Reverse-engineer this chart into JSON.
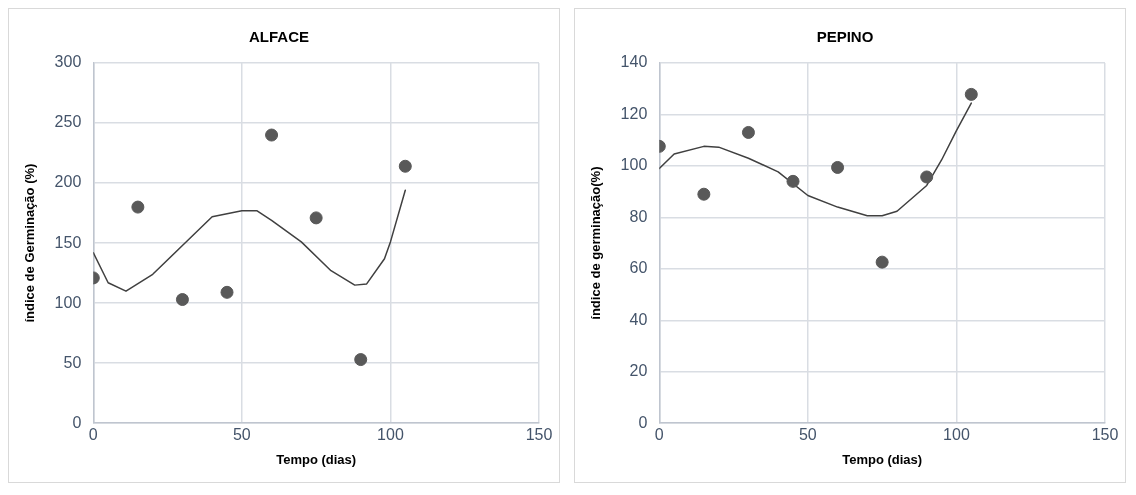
{
  "chart_data": [
    {
      "type": "scatter",
      "title": "ALFACE",
      "xlabel": "Tempo (dias)",
      "ylabel": "índice de Germinação (%)",
      "xlim": [
        0,
        150
      ],
      "xticks": [
        0,
        50,
        100,
        150
      ],
      "ylim": [
        0,
        300
      ],
      "yticks": [
        0,
        50,
        100,
        150,
        200,
        250,
        300
      ],
      "grid": true,
      "series": [
        {
          "type": "scatter",
          "marker": "circle",
          "color": "#595959",
          "x": [
            0,
            15,
            30,
            45,
            60,
            75,
            90,
            105
          ],
          "values": [
            121,
            180,
            103,
            109,
            240,
            171,
            53,
            214
          ]
        },
        {
          "type": "line",
          "color": "#404040",
          "x": [
            0,
            5,
            11,
            20,
            30,
            40,
            50,
            55,
            60,
            70,
            80,
            88,
            92,
            98,
            100,
            105
          ],
          "values": [
            142,
            117,
            110,
            124,
            148,
            172,
            177,
            177,
            169,
            151,
            127,
            115,
            116,
            137,
            151,
            194
          ]
        }
      ]
    },
    {
      "type": "scatter",
      "title": "PEPINO",
      "xlabel": "Tempo (dias)",
      "ylabel": "índice de germinação(%)",
      "xlim": [
        0,
        150
      ],
      "xticks": [
        0,
        50,
        100,
        150
      ],
      "ylim": [
        0,
        140
      ],
      "yticks": [
        0,
        20,
        40,
        60,
        80,
        100,
        120,
        140
      ],
      "grid": true,
      "series": [
        {
          "type": "scatter",
          "marker": "circle",
          "color": "#595959",
          "x": [
            0,
            15,
            30,
            45,
            60,
            75,
            90,
            105
          ],
          "values": [
            107.6,
            89,
            113,
            94,
            99.4,
            62.6,
            95.7,
            127.8
          ]
        },
        {
          "type": "line",
          "color": "#404040",
          "x": [
            0,
            5,
            15,
            20,
            30,
            40,
            50,
            60,
            70,
            75,
            80,
            90,
            95,
            100,
            105
          ],
          "values": [
            99,
            104.6,
            107.6,
            107.3,
            103,
            97.7,
            88.5,
            84,
            80.6,
            80.6,
            82.4,
            92.4,
            102.3,
            113.7,
            124.4
          ]
        }
      ]
    }
  ]
}
